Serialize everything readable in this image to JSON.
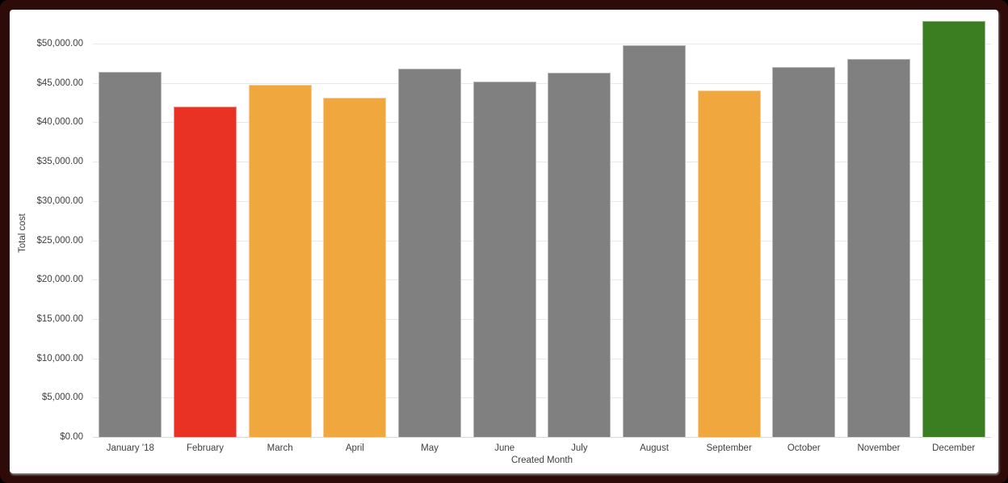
{
  "window": {
    "outer_background": "#000000",
    "border_color": "#2e0b08",
    "panel_background": "#ffffff"
  },
  "chart_data": {
    "type": "bar",
    "title": "",
    "xlabel": "Created Month",
    "ylabel": "Total cost",
    "categories": [
      "January '18",
      "February",
      "March",
      "April",
      "May",
      "June",
      "July",
      "August",
      "September",
      "October",
      "November",
      "December"
    ],
    "values": [
      46400,
      42000,
      44800,
      43100,
      46800,
      45200,
      46300,
      49800,
      44000,
      47000,
      48000,
      52900
    ],
    "bar_colors": [
      "#808080",
      "#e93223",
      "#f0a83e",
      "#f0a83e",
      "#808080",
      "#808080",
      "#808080",
      "#808080",
      "#f0a83e",
      "#808080",
      "#808080",
      "#3b7e22"
    ],
    "default_bar_color": "#808080",
    "highlight_colors": {
      "red": "#e93223",
      "orange": "#f0a83e",
      "green": "#3b7e22"
    },
    "y_tick_labels": [
      "$0.00",
      "$5,000.00",
      "$10,000.00",
      "$15,000.00",
      "$20,000.00",
      "$25,000.00",
      "$30,000.00",
      "$35,000.00",
      "$40,000.00",
      "$45,000.00",
      "$50,000.00"
    ],
    "y_tick_values": [
      0,
      5000,
      10000,
      15000,
      20000,
      25000,
      30000,
      35000,
      40000,
      45000,
      50000
    ],
    "ylim": [
      0,
      53300
    ],
    "grid": true,
    "legend": "none",
    "gridline_color": "#e8e8e8",
    "axis_line_color": "#d4d9de",
    "label_color": "#404040"
  }
}
